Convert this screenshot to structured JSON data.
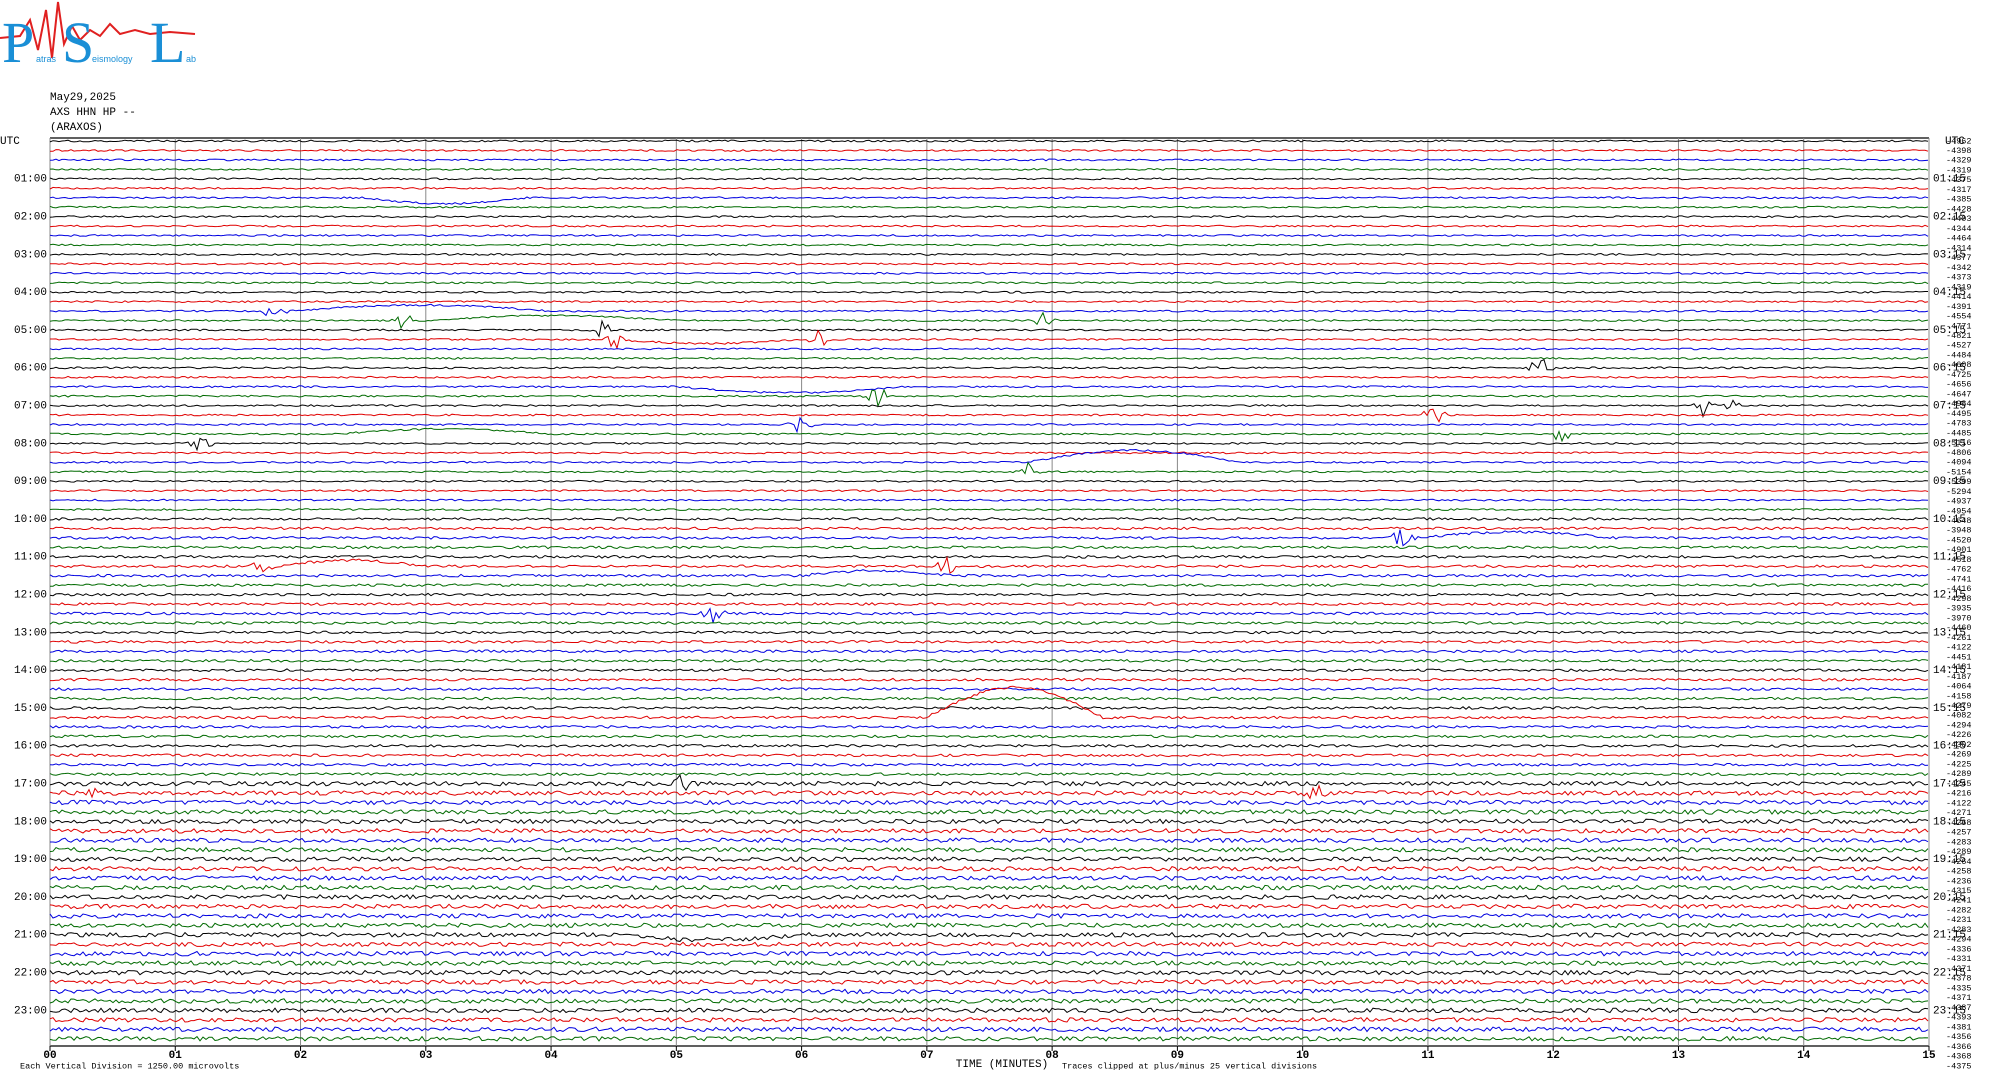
{
  "logo": {
    "letters": [
      "P",
      "S",
      "L"
    ],
    "small": [
      "atras",
      "eismology",
      "ab"
    ]
  },
  "header": {
    "date": "May29,2025",
    "channel": "AXS HHN HP --",
    "station": "(ARAXOS)"
  },
  "timezone": "UTC",
  "left_hours": [
    "01:00",
    "02:00",
    "03:00",
    "04:00",
    "05:00",
    "06:00",
    "07:00",
    "08:00",
    "09:00",
    "10:00",
    "11:00",
    "12:00",
    "13:00",
    "14:00",
    "15:00",
    "16:00",
    "17:00",
    "18:00",
    "19:00",
    "20:00",
    "21:00",
    "22:00",
    "23:00"
  ],
  "right_hours": [
    "01:15",
    "02:15",
    "03:15",
    "04:15",
    "05:15",
    "06:15",
    "07:15",
    "08:15",
    "09:15",
    "10:15",
    "11:15",
    "12:15",
    "13:15",
    "14:15",
    "15:15",
    "16:15",
    "17:15",
    "18:15",
    "19:15",
    "20:15",
    "21:15",
    "22:15",
    "23:15"
  ],
  "minutes": [
    "00",
    "01",
    "02",
    "03",
    "04",
    "05",
    "06",
    "07",
    "08",
    "09",
    "10",
    "11",
    "12",
    "13",
    "14",
    "15"
  ],
  "offsets": [
    -4962,
    -4398,
    -4329,
    -4319,
    -4375,
    -4317,
    -4385,
    -4428,
    -4403,
    -4344,
    -4464,
    -4314,
    -4377,
    -4342,
    -4373,
    -4319,
    -4414,
    -4391,
    -4554,
    -4771,
    -4821,
    -4527,
    -4484,
    -4608,
    -4725,
    -4656,
    -4647,
    -4984,
    -4495,
    -4783,
    -4485,
    -5116,
    -4806,
    -4094,
    -5154,
    -5399,
    -5294,
    -4937,
    -4954,
    -4648,
    -3948,
    -4520,
    -4901,
    -4518,
    -4762,
    -4741,
    -4416,
    -4298,
    -3935,
    -3970,
    -4460,
    -4261,
    -4122,
    -4451,
    -4181,
    -4187,
    -4064,
    -4158,
    -4279,
    -4082,
    -4294,
    -4226,
    -4302,
    -4269,
    -4225,
    -4289,
    -4245,
    -4216,
    -4122,
    -4271,
    -4268,
    -4257,
    -4283,
    -4289,
    -4264,
    -4258,
    -4236,
    -4315,
    -4241,
    -4282,
    -4231,
    -4283,
    -4294,
    -4336,
    -4331,
    -4371,
    -4378,
    -4335,
    -4371,
    -4387,
    -4393,
    -4381,
    -4356,
    -4366,
    -4368,
    -4375
  ],
  "footer": {
    "scale": "Each Vertical Division = 1250.00 microvolts",
    "axis_title": "TIME (MINUTES)",
    "clip": "Traces clipped at plus/minus 25 vertical divisions"
  }
}
